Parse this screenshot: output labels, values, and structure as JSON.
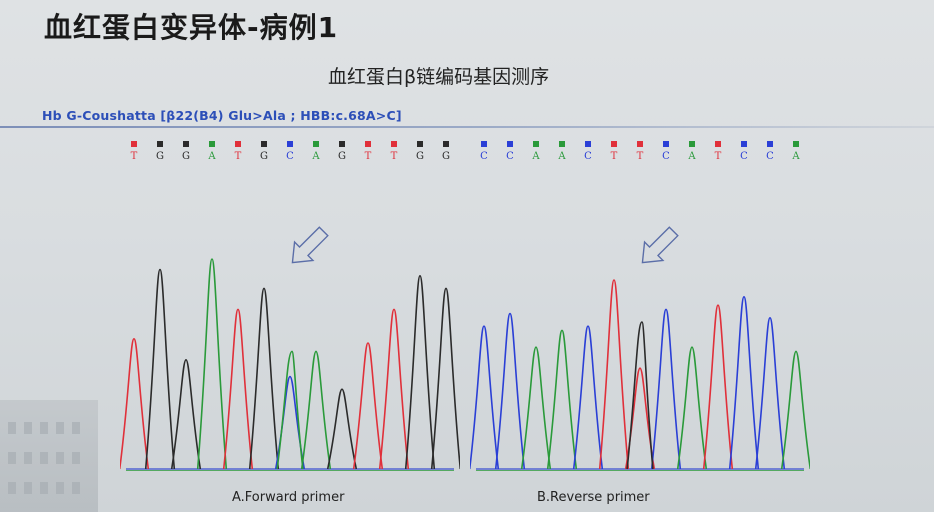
{
  "slide": {
    "title": "血红蛋白变异体-病例1",
    "subtitle": "血红蛋白β链编码基因测序",
    "mutation_label": "Hb G-Coushatta [β22(B4) Glu>Ala ; HBB:c.68A>C]"
  },
  "colors": {
    "A": "#2a9a3a",
    "C": "#2a3fd6",
    "G": "#2b2b2b",
    "T": "#e0303a",
    "title": "#1a1a1a",
    "mutation": "#2c4fb8"
  },
  "panels": [
    {
      "caption": "A.Forward primer",
      "sequence": [
        "T",
        "G",
        "G",
        "A",
        "T",
        "G",
        "C",
        "A",
        "G",
        "T",
        "T",
        "G",
        "G"
      ],
      "peak_heights": [
        0.62,
        0.95,
        0.52,
        1.0,
        0.76,
        0.86,
        0.44,
        0.56,
        0.38,
        0.6,
        0.76,
        0.92,
        0.86
      ],
      "mutation_index": 6,
      "secondary_peak": {
        "base": "A",
        "height": 0.56
      }
    },
    {
      "caption": "B.Reverse primer",
      "sequence": [
        "C",
        "C",
        "A",
        "A",
        "C",
        "T",
        "T",
        "C",
        "A",
        "T",
        "C",
        "C",
        "A"
      ],
      "peak_heights": [
        0.68,
        0.74,
        0.58,
        0.66,
        0.68,
        0.9,
        0.48,
        0.76,
        0.58,
        0.78,
        0.82,
        0.72,
        0.56
      ],
      "mutation_index": 6,
      "secondary_peak": {
        "base": "G",
        "height": 0.7
      }
    }
  ]
}
